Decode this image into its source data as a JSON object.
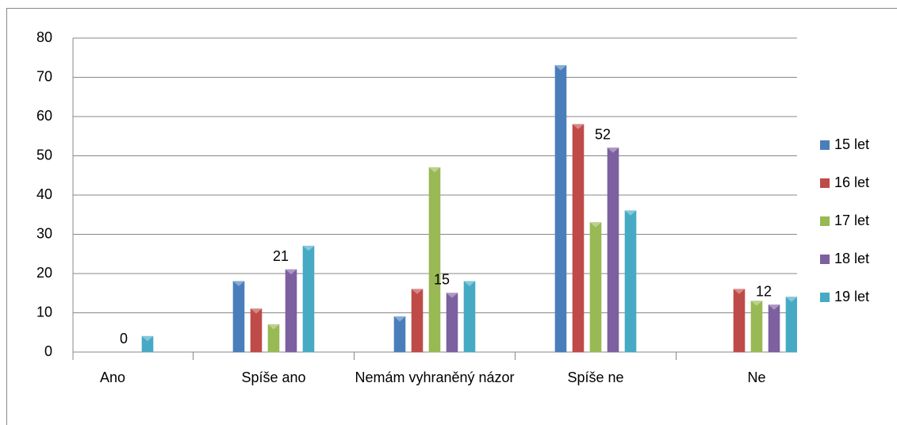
{
  "chart_data": {
    "type": "bar",
    "categories": [
      "Ano",
      "Spíše ano",
      "Nemám vyhraněný názor",
      "Spíše ne",
      "Ne"
    ],
    "series": [
      {
        "name": "15 let",
        "color": "#4a7ebb",
        "values": [
          0,
          18,
          9,
          73,
          0
        ]
      },
      {
        "name": "16 let",
        "color": "#be4b48",
        "values": [
          0,
          11,
          16,
          58,
          16
        ]
      },
      {
        "name": "17 let",
        "color": "#98b954",
        "values": [
          0,
          7,
          47,
          33,
          13
        ]
      },
      {
        "name": "18 let",
        "color": "#7d60a0",
        "values": [
          0,
          21,
          15,
          52,
          12
        ],
        "data_labels": true
      },
      {
        "name": "19 let",
        "color": "#46aac5",
        "values": [
          4,
          27,
          18,
          36,
          14
        ]
      }
    ],
    "ylim": [
      0,
      80
    ],
    "yticks": [
      0,
      10,
      20,
      30,
      40,
      50,
      60,
      70,
      80
    ],
    "grid": true,
    "legend": "right"
  }
}
